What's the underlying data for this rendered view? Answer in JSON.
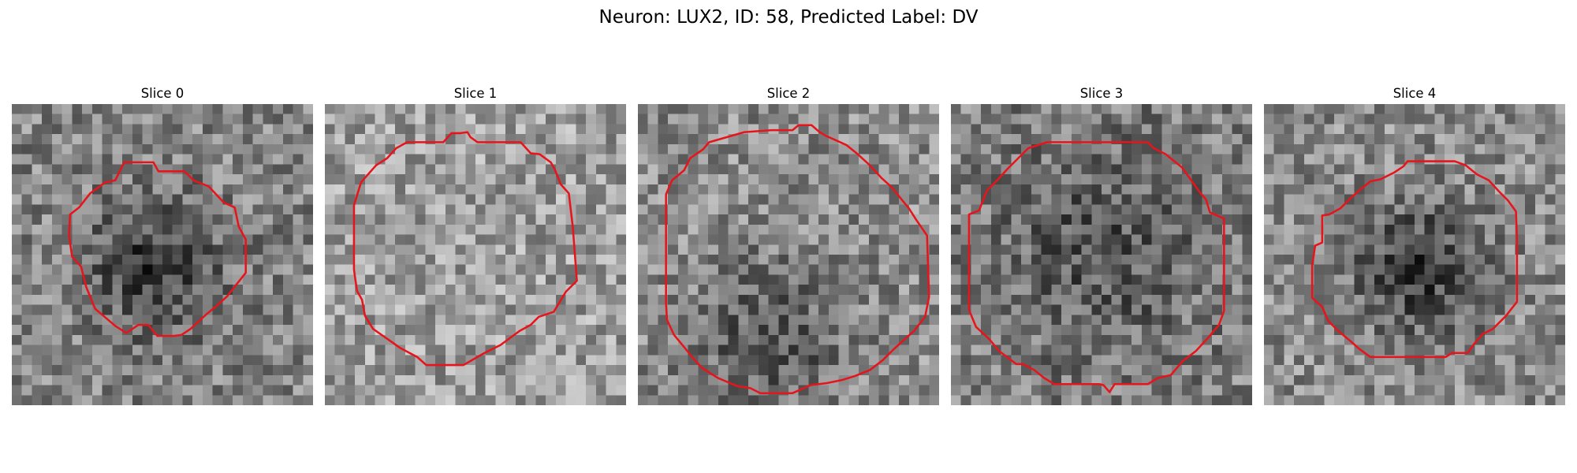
{
  "figure": {
    "title": "Neuron: LUX2, ID: 58, Predicted Label: DV"
  },
  "colors": {
    "contour": "#e8141b",
    "background": "#ffffff"
  },
  "slices": [
    {
      "title": "Slice 0",
      "seed": 11,
      "mean": 0.52,
      "dark_center": 0.3,
      "center": [
        0.48,
        0.55
      ],
      "spread": 0.22
    },
    {
      "title": "Slice 1",
      "seed": 23,
      "mean": 0.62,
      "dark_center": 0.0,
      "center": [
        0.5,
        0.5
      ],
      "spread": 0.3
    },
    {
      "title": "Slice 2",
      "seed": 37,
      "mean": 0.55,
      "dark_center": 0.22,
      "center": [
        0.45,
        0.78
      ],
      "spread": 0.25
    },
    {
      "title": "Slice 3",
      "seed": 41,
      "mean": 0.5,
      "dark_center": 0.18,
      "center": [
        0.5,
        0.48
      ],
      "spread": 0.32
    },
    {
      "title": "Slice 4",
      "seed": 53,
      "mean": 0.55,
      "dark_center": 0.32,
      "center": [
        0.52,
        0.55
      ],
      "spread": 0.22
    }
  ]
}
